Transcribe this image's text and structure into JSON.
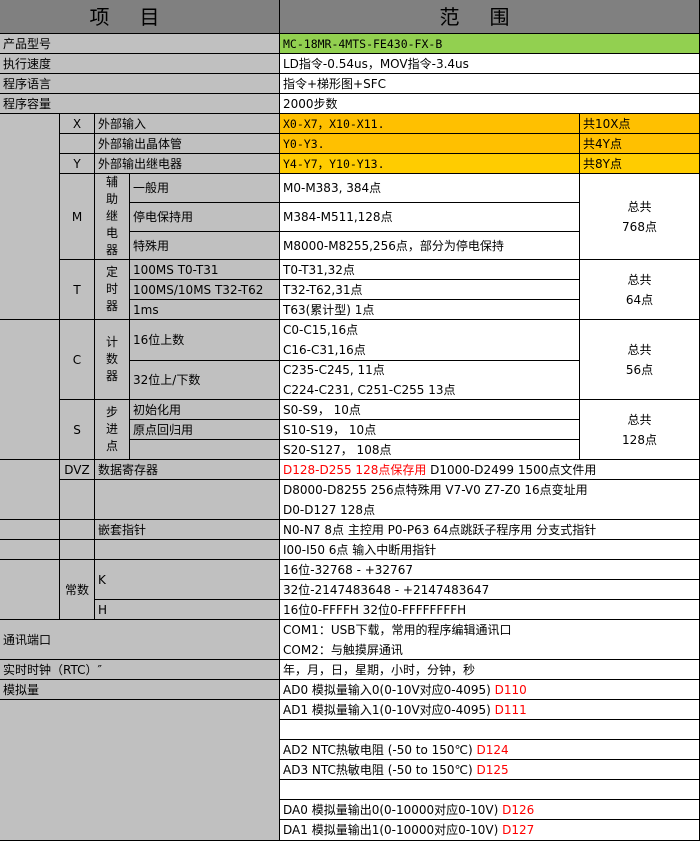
{
  "header": {
    "item": "项目",
    "range": "范围"
  },
  "basic": [
    {
      "label": "产品型号",
      "value": "MC-18MR-4MTS-FE430-FX-B"
    },
    {
      "label": "执行速度",
      "value": "LD指令-0.54us，MOV指令-3.4us"
    },
    {
      "label": "程序语言",
      "value": "指令+梯形图+SFC"
    },
    {
      "label": "程序容量",
      "value": "2000步数"
    }
  ],
  "io": [
    {
      "code": "X",
      "name": "外部输入",
      "range": "X0-X7，X10-X11.",
      "total": "共10X点"
    },
    {
      "code": "",
      "name": "外部输出晶体管",
      "range": "Y0-Y3.",
      "total": "共4Y点"
    },
    {
      "code": "Y",
      "name": "外部输出继电器",
      "range": "Y4-Y7，Y10-Y13.",
      "total": "共8Y点"
    }
  ],
  "groups": {
    "M": {
      "code": "M",
      "type": "辅助继电器",
      "total": "总共\n768点",
      "rows": [
        {
          "name": "一般用",
          "value": "M0-M383, 384点"
        },
        {
          "name": "停电保持用",
          "value": "M384-M511,128点"
        },
        {
          "name": "特殊用",
          "value": "M8000-M8255,256点，部分为停电保持"
        }
      ]
    },
    "T": {
      "code": "T",
      "type": "定时器",
      "total": "总共\n64点",
      "rows": [
        {
          "name": "100MS T0-T31",
          "value": "T0-T31,32点"
        },
        {
          "name": "100MS/10MS T32-T62",
          "value": "T32-T62,31点"
        },
        {
          "name": "1ms",
          "value": "T63(累计型) 1点"
        }
      ]
    },
    "C": {
      "code": "C",
      "type": "计数器",
      "total": "总共\n56点",
      "rows": [
        {
          "name": "16位上数",
          "value": "C0-C15,16点\nC16-C31,16点"
        },
        {
          "name": "32位上/下数",
          "value": "C235-C245,   11点\nC224-C231, C251-C255 13点"
        }
      ]
    },
    "S": {
      "code": "S",
      "type": "步进点",
      "total": "总共\n128点",
      "rows": [
        {
          "name": "初始化用",
          "value": "S0-S9，  10点"
        },
        {
          "name": "原点回归用",
          "value": "S10-S19，  10点"
        },
        {
          "name": "",
          "value": "S20-S127，  108点"
        }
      ]
    }
  },
  "dvz": {
    "code": "DVZ",
    "name": "数据寄存器",
    "value_red": "D128-D255 128点保存用",
    "value": " D1000-D2499 1500点文件用",
    "value2": "D8000-D8255 256点特殊用 V7-V0 Z7-Z0 16点变址用\nD0-D127 128点"
  },
  "pointer": {
    "name": "嵌套指针",
    "value": "N0-N7 8点 主控用 P0-P63 64点跳跃子程序用 分支式指针",
    "value2": "I00-I50 6点 输入中断用指针"
  },
  "const": {
    "name": "常数",
    "k": "K",
    "k16": "16位-32768 - +32767",
    "k32": "32位-2147483648 - +2147483647",
    "h": "H",
    "hval": "16位0-FFFFH 32位0-FFFFFFFFH"
  },
  "comm": {
    "label": "通讯端口",
    "value": "COM1：USB下载，常用的程序编辑通讯口\nCOM2：与触摸屏通讯"
  },
  "rtc": {
    "label": "实时时钟（RTC）″",
    "value": "年，月，日，星期，小时，分钟，秒"
  },
  "analog": {
    "label": "模拟量",
    "rows": [
      {
        "text": "AD0 模拟量输入0(0-10V对应0-4095) ",
        "reg": "D110"
      },
      {
        "text": "AD1 模拟量输入1(0-10V对应0-4095) ",
        "reg": "D111"
      },
      {
        "text": "",
        "reg": ""
      },
      {
        "text": "AD2 NTC热敏电阻 (-50 to 150℃)  ",
        "reg": "D124"
      },
      {
        "text": "AD3 NTC热敏电阻 (-50 to 150℃)  ",
        "reg": "D125"
      },
      {
        "text": "",
        "reg": ""
      },
      {
        "text": "DA0 模拟量输出0(0-10000对应0-10V) ",
        "reg": "D126"
      },
      {
        "text": "DA1 模拟量输出1(0-10000对应0-10V) ",
        "reg": "D127"
      }
    ]
  },
  "colors": {
    "header": "#808080",
    "label": "#c0c0c0",
    "model": "#92d050",
    "io": "#ffc000",
    "relay": "#ffcc00",
    "highlight": "#ff0000"
  }
}
